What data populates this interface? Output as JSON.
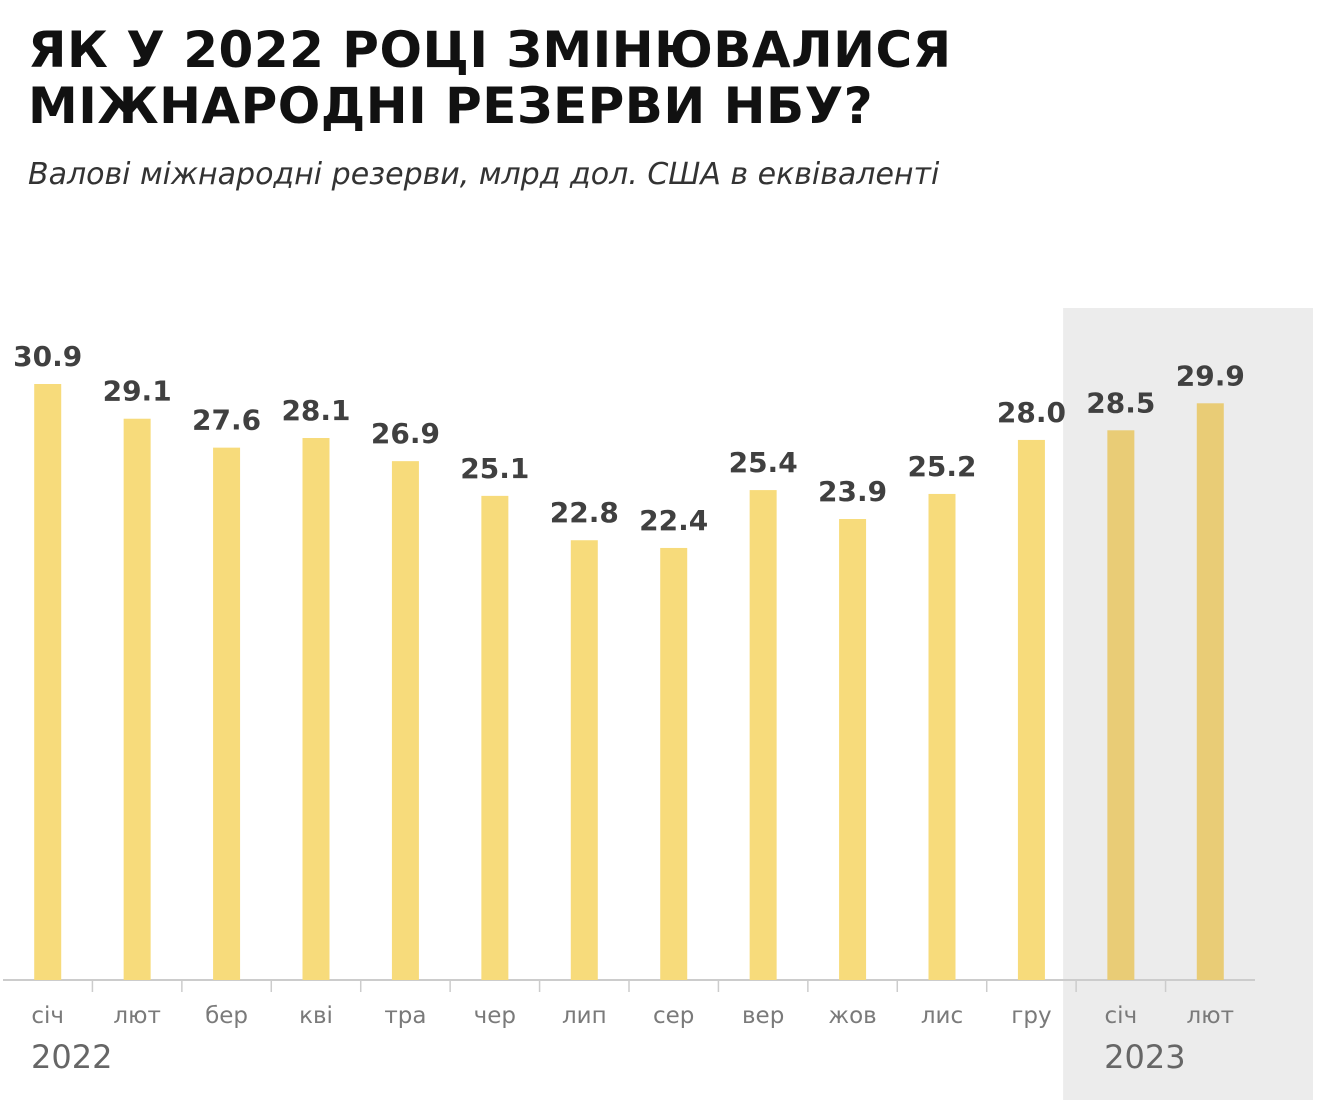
{
  "title": "ЯК У 2022 РОЦІ ЗМІНЮВАЛИСЯ МІЖНАРОДНІ РЕЗЕРВИ НБУ?",
  "subtitle": "Валові міжнародні резерви, млрд дол. США в еквіваленті",
  "colors": {
    "bar": "#f7db7b",
    "bar_highlight": "#e9cc76",
    "highlight_bg": "#ececec",
    "axis": "#cccccc",
    "value_label": "#404040",
    "tick_label": "#7a7a7a"
  },
  "chart_data": {
    "type": "bar",
    "title": "ЯК У 2022 РОЦІ ЗМІНЮВАЛИСЯ МІЖНАРОДНІ РЕЗЕРВИ НБУ?",
    "subtitle": "Валові міжнародні резерви, млрд дол. США в еквіваленті",
    "categories": [
      "січ",
      "лют",
      "бер",
      "кві",
      "тра",
      "чер",
      "лип",
      "сер",
      "вер",
      "жов",
      "лис",
      "гру",
      "січ",
      "лют"
    ],
    "values": [
      30.9,
      29.1,
      27.6,
      28.1,
      26.9,
      25.1,
      22.8,
      22.4,
      25.4,
      23.9,
      25.2,
      28.0,
      28.5,
      29.9
    ],
    "value_labels": [
      "30.9",
      "29.1",
      "27.6",
      "28.1",
      "26.9",
      "25.1",
      "22.8",
      "22.4",
      "25.4",
      "23.9",
      "25.2",
      "28.0",
      "28.5",
      "29.9"
    ],
    "years": [
      {
        "label": "2022",
        "start_index": 0
      },
      {
        "label": "2023",
        "start_index": 12
      }
    ],
    "highlight_categories": [
      12,
      13
    ],
    "ylim": [
      0,
      33
    ],
    "xlabel": "",
    "ylabel": "",
    "grid": false,
    "legend": "none"
  }
}
